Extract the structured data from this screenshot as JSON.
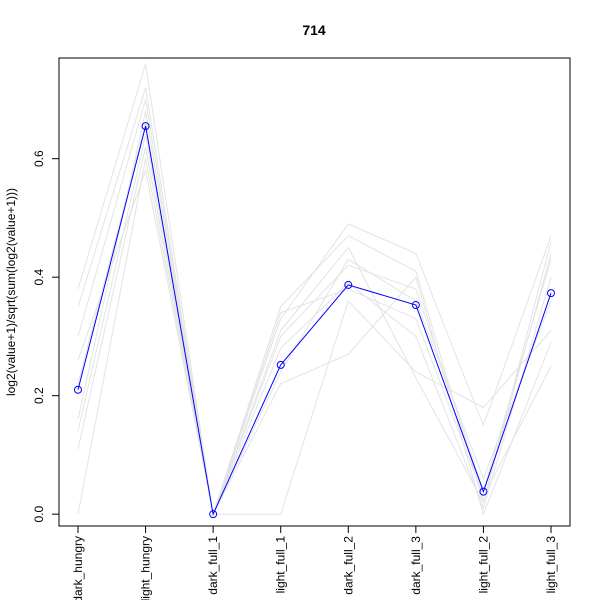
{
  "chart_data": {
    "type": "line",
    "title": "714",
    "xlabel": "",
    "ylabel": "log2(value+1)/sqrt(sum(log2(value+1)))",
    "categories": [
      "dark_hungry",
      "light_hungry",
      "dark_full_1",
      "light_full_1",
      "dark_full_2",
      "dark_full_3",
      "light_full_2",
      "light_full_3"
    ],
    "ylim": [
      -0.02,
      0.77
    ],
    "yticks": [
      0.0,
      0.2,
      0.4,
      0.6
    ],
    "ytick_labels": [
      "0.0",
      "0.2",
      "0.4",
      "0.6"
    ],
    "grid": false,
    "highlight": {
      "color": "#0000ff",
      "values": [
        0.21,
        0.655,
        0.0,
        0.252,
        0.387,
        0.353,
        0.038,
        0.373
      ]
    },
    "background_series_color": "#e3e3e3",
    "background_series": [
      [
        0.38,
        0.76,
        0.0,
        0.35,
        0.47,
        0.41,
        0.02,
        0.46
      ],
      [
        0.35,
        0.72,
        0.0,
        0.3,
        0.42,
        0.38,
        0.04,
        0.43
      ],
      [
        0.3,
        0.7,
        0.0,
        0.33,
        0.49,
        0.44,
        0.15,
        0.47
      ],
      [
        0.16,
        0.68,
        0.0,
        0.28,
        0.39,
        0.3,
        0.01,
        0.4
      ],
      [
        0.14,
        0.64,
        0.0,
        0.24,
        0.43,
        0.36,
        0.06,
        0.36
      ],
      [
        0.11,
        0.62,
        0.0,
        0.22,
        0.27,
        0.4,
        0.0,
        0.29
      ],
      [
        0.0,
        0.6,
        0.0,
        0.0,
        0.36,
        0.24,
        0.18,
        0.31
      ],
      [
        0.26,
        0.58,
        0.0,
        0.34,
        0.38,
        0.33,
        0.03,
        0.25
      ],
      [
        0.22,
        0.66,
        0.0,
        0.31,
        0.45,
        0.23,
        0.02,
        0.44
      ]
    ]
  }
}
